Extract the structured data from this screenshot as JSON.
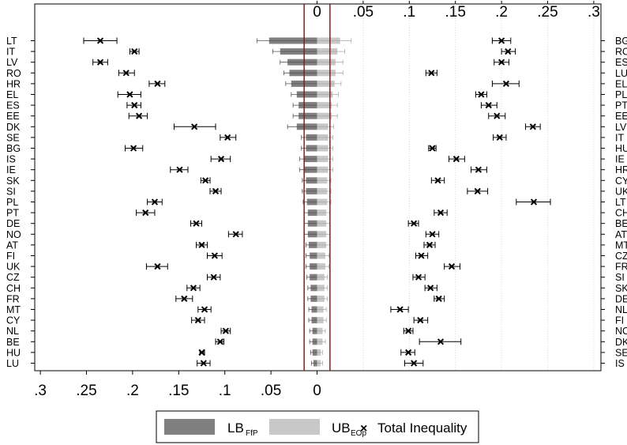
{
  "chart_data": {
    "type": "bar",
    "top_axis": {
      "ticks": [
        0,
        0.05,
        0.1,
        0.15,
        0.2,
        0.25,
        0.3
      ],
      "tick_labels": [
        "0",
        ".05",
        ".1",
        ".15",
        ".2",
        ".25",
        ".3"
      ]
    },
    "bottom_axis": {
      "ticks": [
        0.3,
        0.25,
        0.2,
        0.15,
        0.1,
        0.05,
        0
      ],
      "tick_labels": [
        ".3",
        ".25",
        ".2",
        ".15",
        ".1",
        ".05",
        "0"
      ]
    },
    "reference_lines": [
      -0.014,
      0.014
    ],
    "legend": [
      {
        "label": "LB",
        "subscript": "FfP",
        "color": "#7f7f7f"
      },
      {
        "label": "UB",
        "subscript": "EOp",
        "color": "#c8c8c8"
      },
      {
        "label": "Total Inequality",
        "marker": "×"
      }
    ],
    "left_panel": {
      "categories": [
        "LT",
        "IT",
        "LV",
        "RO",
        "HR",
        "EL",
        "ES",
        "EE",
        "DK",
        "SE",
        "BG",
        "IS",
        "IE",
        "SK",
        "SI",
        "PL",
        "PT",
        "DE",
        "NO",
        "AT",
        "FI",
        "UK",
        "CZ",
        "CH",
        "FR",
        "MT",
        "CY",
        "NL",
        "BE",
        "HU",
        "LU"
      ],
      "total_inequality": [
        0.235,
        0.198,
        0.235,
        0.207,
        0.173,
        0.203,
        0.198,
        0.193,
        0.133,
        0.097,
        0.199,
        0.104,
        0.149,
        0.121,
        0.11,
        0.176,
        0.186,
        0.131,
        0.088,
        0.125,
        0.111,
        0.173,
        0.112,
        0.134,
        0.144,
        0.122,
        0.129,
        0.099,
        0.105,
        0.125,
        0.123
      ],
      "ci_low": [
        0.217,
        0.193,
        0.227,
        0.198,
        0.165,
        0.191,
        0.191,
        0.184,
        0.11,
        0.088,
        0.189,
        0.094,
        0.14,
        0.116,
        0.104,
        0.168,
        0.176,
        0.125,
        0.081,
        0.119,
        0.103,
        0.162,
        0.105,
        0.127,
        0.135,
        0.115,
        0.122,
        0.094,
        0.101,
        0.122,
        0.116
      ],
      "ci_high": [
        0.253,
        0.203,
        0.243,
        0.215,
        0.182,
        0.216,
        0.206,
        0.204,
        0.155,
        0.105,
        0.208,
        0.115,
        0.159,
        0.126,
        0.116,
        0.184,
        0.196,
        0.137,
        0.096,
        0.131,
        0.119,
        0.185,
        0.119,
        0.141,
        0.153,
        0.129,
        0.136,
        0.104,
        0.11,
        0.127,
        0.13
      ],
      "lb_ffp": [
        0.052,
        0.04,
        0.032,
        0.03,
        0.028,
        0.022,
        0.02,
        0.02,
        0.022,
        0.012,
        0.012,
        0.014,
        0.014,
        0.012,
        0.012,
        0.011,
        0.01,
        0.01,
        0.01,
        0.009,
        0.008,
        0.008,
        0.008,
        0.007,
        0.007,
        0.006,
        0.006,
        0.005,
        0.005,
        0.005,
        0.004
      ],
      "lb_ffp_ci_high": [
        0.065,
        0.048,
        0.04,
        0.036,
        0.034,
        0.028,
        0.026,
        0.026,
        0.032,
        0.017,
        0.017,
        0.019,
        0.019,
        0.016,
        0.016,
        0.015,
        0.014,
        0.014,
        0.014,
        0.012,
        0.012,
        0.012,
        0.011,
        0.01,
        0.01,
        0.009,
        0.009,
        0.008,
        0.008,
        0.007,
        0.006
      ],
      "ub_eop": [
        0.025,
        0.022,
        0.02,
        0.02,
        0.019,
        0.017,
        0.016,
        0.016,
        0.012,
        0.012,
        0.012,
        0.012,
        0.012,
        0.011,
        0.011,
        0.011,
        0.01,
        0.01,
        0.01,
        0.01,
        0.009,
        0.009,
        0.008,
        0.008,
        0.008,
        0.007,
        0.007,
        0.006,
        0.006,
        0.004,
        0.004
      ],
      "ub_eop_ci_high": [
        0.037,
        0.03,
        0.028,
        0.028,
        0.026,
        0.023,
        0.022,
        0.022,
        0.018,
        0.017,
        0.017,
        0.017,
        0.017,
        0.015,
        0.015,
        0.015,
        0.014,
        0.014,
        0.014,
        0.014,
        0.013,
        0.013,
        0.011,
        0.011,
        0.011,
        0.01,
        0.01,
        0.009,
        0.009,
        0.006,
        0.006
      ]
    },
    "right_panel": {
      "categories": [
        "BG",
        "RO",
        "ES",
        "LU",
        "EL",
        "PL",
        "PT",
        "EE",
        "LV",
        "IT",
        "HU",
        "IE",
        "HR",
        "CY",
        "UK",
        "LT",
        "CH",
        "BE",
        "AT",
        "MT",
        "CZ",
        "FR",
        "SI",
        "SK",
        "DE",
        "NL",
        "FI",
        "NO",
        "DK",
        "SE",
        "IS"
      ],
      "total_inequality": [
        0.2,
        0.207,
        0.2,
        0.124,
        0.205,
        0.178,
        0.186,
        0.195,
        0.234,
        0.198,
        0.125,
        0.151,
        0.175,
        0.131,
        0.174,
        0.235,
        0.134,
        0.105,
        0.125,
        0.122,
        0.113,
        0.146,
        0.11,
        0.123,
        0.132,
        0.09,
        0.112,
        0.099,
        0.134,
        0.099,
        0.105
      ],
      "ci_low": [
        0.19,
        0.2,
        0.192,
        0.118,
        0.19,
        0.172,
        0.178,
        0.186,
        0.226,
        0.191,
        0.121,
        0.143,
        0.167,
        0.124,
        0.163,
        0.216,
        0.127,
        0.099,
        0.118,
        0.116,
        0.107,
        0.138,
        0.104,
        0.117,
        0.127,
        0.08,
        0.105,
        0.094,
        0.111,
        0.091,
        0.095
      ],
      "ci_high": [
        0.21,
        0.215,
        0.208,
        0.13,
        0.219,
        0.184,
        0.195,
        0.204,
        0.242,
        0.205,
        0.129,
        0.16,
        0.184,
        0.138,
        0.185,
        0.253,
        0.141,
        0.11,
        0.132,
        0.128,
        0.12,
        0.155,
        0.117,
        0.13,
        0.138,
        0.099,
        0.12,
        0.104,
        0.156,
        0.106,
        0.115
      ]
    }
  }
}
